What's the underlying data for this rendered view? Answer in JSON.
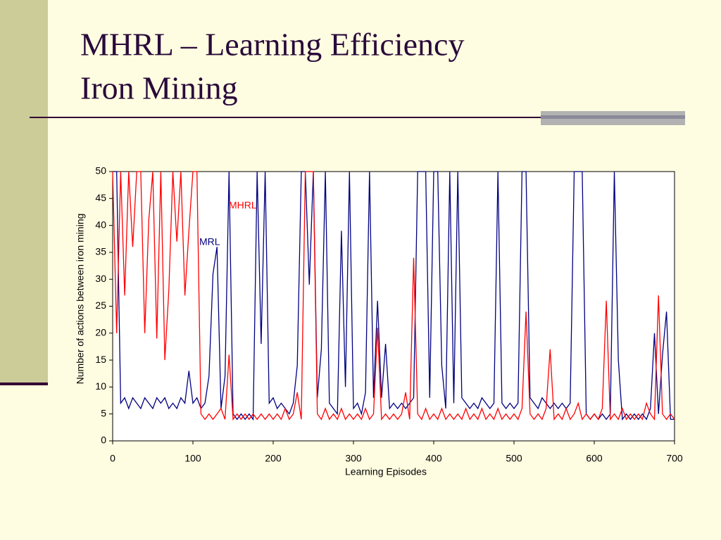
{
  "chart_data": {
    "type": "line",
    "title": "MHRL – Learning Efficiency",
    "subtitle": "Iron Mining",
    "x_label": "Learning Episodes",
    "y_label": "Number of actions between iron mining",
    "xlim": [
      0,
      700
    ],
    "xticks": [
      0,
      100,
      200,
      300,
      400,
      500,
      600,
      700
    ],
    "ylim": [
      0,
      50
    ],
    "yticks": [
      0,
      5,
      10,
      15,
      20,
      25,
      30,
      35,
      40,
      45,
      50
    ],
    "grid": false,
    "x": [
      0,
      5,
      10,
      15,
      20,
      25,
      30,
      35,
      40,
      45,
      50,
      55,
      60,
      65,
      70,
      75,
      80,
      85,
      90,
      95,
      100,
      105,
      110,
      115,
      120,
      125,
      130,
      135,
      140,
      145,
      150,
      155,
      160,
      165,
      170,
      175,
      180,
      185,
      190,
      195,
      200,
      205,
      210,
      215,
      220,
      225,
      230,
      235,
      240,
      245,
      250,
      255,
      260,
      265,
      270,
      275,
      280,
      285,
      290,
      295,
      300,
      305,
      310,
      315,
      320,
      325,
      330,
      335,
      340,
      345,
      350,
      355,
      360,
      365,
      370,
      375,
      380,
      385,
      390,
      395,
      400,
      405,
      410,
      415,
      420,
      425,
      430,
      435,
      440,
      445,
      450,
      455,
      460,
      465,
      470,
      475,
      480,
      485,
      490,
      495,
      500,
      505,
      510,
      515,
      520,
      525,
      530,
      535,
      540,
      545,
      550,
      555,
      560,
      565,
      570,
      575,
      580,
      585,
      590,
      595,
      600,
      605,
      610,
      615,
      620,
      625,
      630,
      635,
      640,
      645,
      650,
      655,
      660,
      665,
      670,
      675,
      680,
      685,
      690,
      695,
      700
    ],
    "series": [
      {
        "name": "MRL",
        "color": "#000080",
        "values": [
          50,
          50,
          7,
          8,
          6,
          8,
          7,
          6,
          8,
          7,
          6,
          8,
          7,
          8,
          6,
          7,
          6,
          8,
          7,
          13,
          7,
          8,
          6,
          7,
          12,
          31,
          36,
          6,
          12,
          50,
          5,
          4,
          5,
          4,
          5,
          4,
          50,
          18,
          50,
          7,
          8,
          6,
          7,
          6,
          5,
          7,
          14,
          50,
          50,
          29,
          50,
          8,
          17,
          50,
          7,
          6,
          5,
          39,
          10,
          50,
          6,
          7,
          5,
          9,
          50,
          8,
          26,
          8,
          18,
          6,
          7,
          6,
          7,
          6,
          7,
          8,
          50,
          50,
          50,
          8,
          50,
          50,
          14,
          6,
          50,
          7,
          50,
          8,
          7,
          6,
          7,
          6,
          8,
          7,
          6,
          7,
          50,
          7,
          6,
          7,
          6,
          7,
          50,
          50,
          8,
          7,
          6,
          8,
          7,
          6,
          7,
          6,
          7,
          6,
          7,
          50,
          50,
          50,
          5,
          4,
          5,
          4,
          5,
          4,
          5,
          50,
          15,
          4,
          5,
          4,
          5,
          4,
          5,
          4,
          6,
          20,
          5,
          16,
          24,
          4,
          4
        ]
      },
      {
        "name": "MHRL",
        "color": "#ff0000",
        "values": [
          50,
          20,
          50,
          27,
          50,
          36,
          50,
          50,
          20,
          41,
          50,
          19,
          50,
          15,
          28,
          50,
          37,
          50,
          27,
          39,
          50,
          50,
          5,
          4,
          5,
          4,
          5,
          6,
          4,
          16,
          4,
          5,
          4,
          5,
          4,
          5,
          4,
          5,
          4,
          5,
          4,
          5,
          4,
          6,
          4,
          5,
          9,
          4,
          50,
          50,
          50,
          5,
          4,
          6,
          4,
          5,
          4,
          6,
          4,
          5,
          4,
          5,
          4,
          6,
          4,
          5,
          21,
          4,
          5,
          4,
          5,
          4,
          5,
          9,
          4,
          34,
          5,
          4,
          6,
          4,
          5,
          4,
          6,
          4,
          5,
          4,
          5,
          4,
          6,
          4,
          5,
          4,
          6,
          4,
          5,
          4,
          6,
          4,
          5,
          4,
          5,
          4,
          6,
          24,
          5,
          4,
          5,
          4,
          6,
          17,
          4,
          5,
          4,
          6,
          4,
          5,
          7,
          4,
          5,
          4,
          5,
          4,
          6,
          26,
          4,
          5,
          4,
          6,
          4,
          5,
          4,
          5,
          4,
          7,
          5,
          4,
          27,
          5,
          4,
          5,
          4
        ]
      }
    ]
  }
}
